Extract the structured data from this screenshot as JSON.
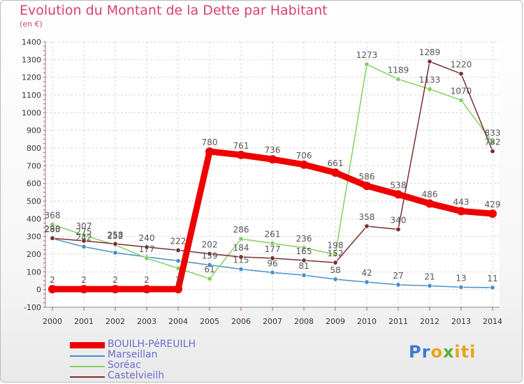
{
  "title": "Evolution du Montant de la Dette par Habitant",
  "subtitle": "(en €)",
  "brand": [
    "Pr",
    "o",
    "x",
    "iti"
  ],
  "chart_data": {
    "type": "line",
    "title": "Evolution du Montant de la Dette par Habitant",
    "subtitle": "(en €)",
    "x": [
      2000,
      2001,
      2002,
      2003,
      2004,
      2005,
      2006,
      2007,
      2008,
      2009,
      2010,
      2011,
      2012,
      2013,
      2014
    ],
    "ylim": [
      -100,
      1400
    ],
    "yticks": [
      -100,
      0,
      100,
      200,
      300,
      400,
      500,
      600,
      700,
      800,
      900,
      1000,
      1100,
      1200,
      1300,
      1400
    ],
    "grid": true,
    "legend_position": "bottom-left",
    "series": [
      {
        "name": "Marseillan",
        "color": "#4a90c8",
        "values": [
          288,
          242,
          208,
          184,
          162,
          139,
          115,
          96,
          81,
          58,
          42,
          27,
          21,
          13,
          11
        ],
        "labels": [
          "288",
          "242",
          "",
          "",
          "",
          "139",
          "115",
          "96",
          "81",
          "58",
          "42",
          "27",
          "21",
          "13",
          "11"
        ]
      },
      {
        "name": "Soréac",
        "color": "#80d060",
        "values": [
          368,
          307,
          252,
          177,
          120,
          61,
          286,
          261,
          236,
          198,
          1273,
          1189,
          1133,
          1070,
          833
        ],
        "labels": [
          "368",
          "307",
          "252",
          "177",
          "",
          "61",
          "286",
          "261",
          "236",
          "198",
          "1273",
          "1189",
          "1133",
          "1070",
          "833"
        ]
      },
      {
        "name": "Castelvieilh",
        "color": "#7a2e2e",
        "values": [
          290,
          275,
          258,
          240,
          222,
          202,
          184,
          177,
          165,
          152,
          358,
          340,
          1289,
          1220,
          782
        ],
        "labels": [
          "290",
          "275",
          "258",
          "240",
          "222",
          "202",
          "184",
          "177",
          "165",
          "152",
          "358",
          "340",
          "1289",
          "1220",
          "782"
        ]
      },
      {
        "name": "BOUILH-PéREUILH",
        "color": "#ee0000",
        "values": [
          2,
          2,
          2,
          2,
          2,
          780,
          761,
          736,
          706,
          661,
          586,
          538,
          486,
          443,
          429
        ],
        "labels": [
          "2",
          "2",
          "2",
          "2",
          "2",
          "780",
          "761",
          "736",
          "706",
          "661",
          "586",
          "538",
          "486",
          "443",
          "429"
        ]
      }
    ]
  }
}
